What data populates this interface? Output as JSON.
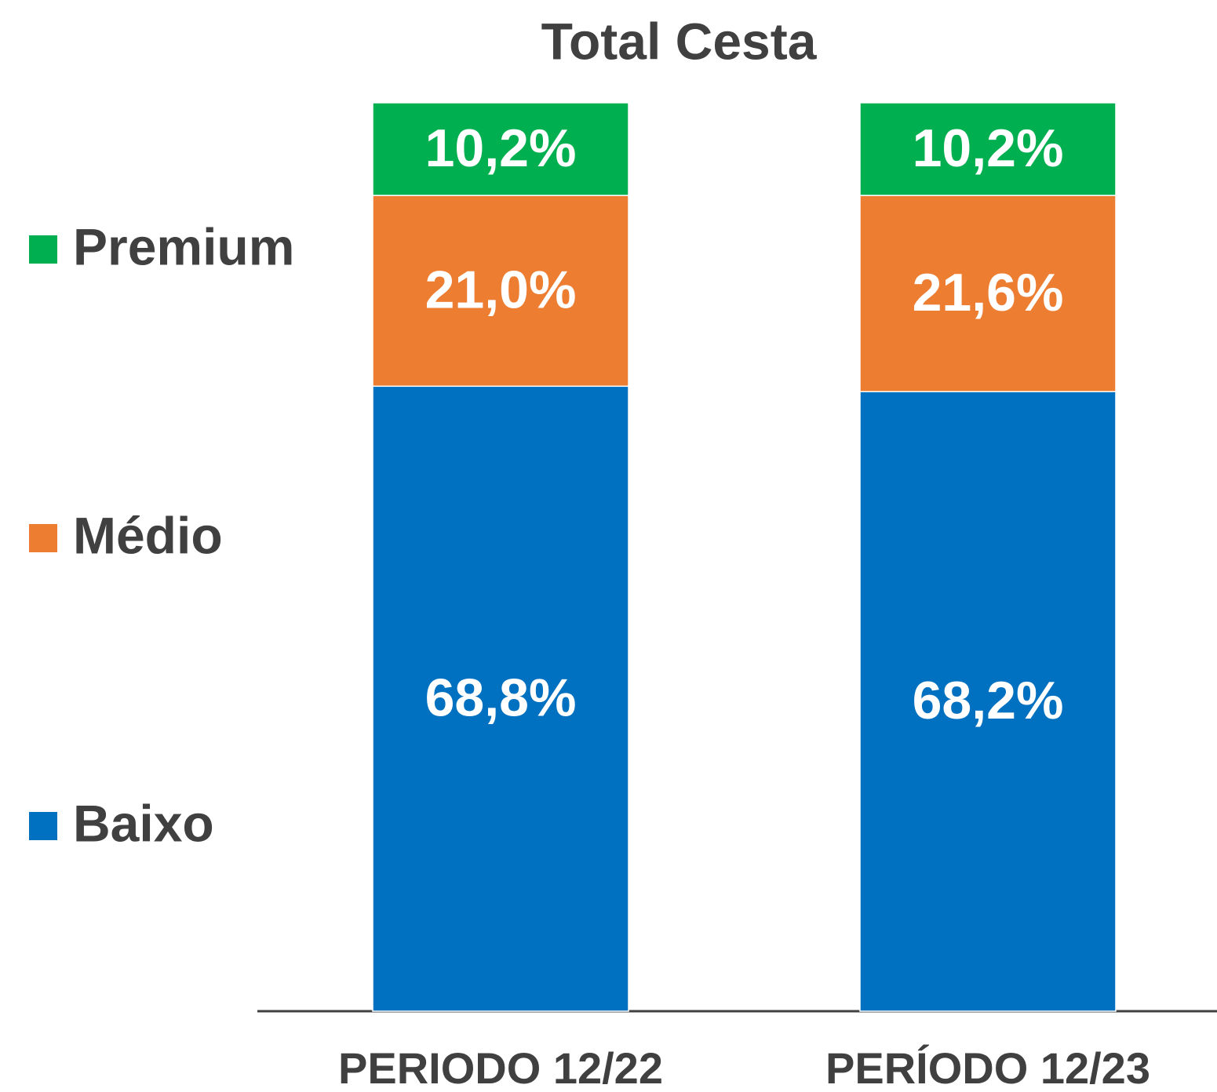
{
  "chart_data": {
    "type": "stacked_bar",
    "title": "Total Cesta",
    "categories": [
      "PERIODO 12/22",
      "PERÍODO 12/23"
    ],
    "series": [
      {
        "name": "Baixo",
        "color": "#0070c0",
        "values": [
          68.8,
          68.2
        ],
        "value_labels": [
          "68,8%",
          "68,2%"
        ]
      },
      {
        "name": "Médio",
        "color": "#ed7d31",
        "values": [
          21.0,
          21.6
        ],
        "value_labels": [
          "21,0%",
          "21,6%"
        ]
      },
      {
        "name": "Premium",
        "color": "#00b050",
        "values": [
          10.2,
          10.2
        ],
        "value_labels": [
          "10,2%",
          "10,2%"
        ]
      }
    ],
    "ylim": [
      0,
      100
    ],
    "legend": "left"
  }
}
